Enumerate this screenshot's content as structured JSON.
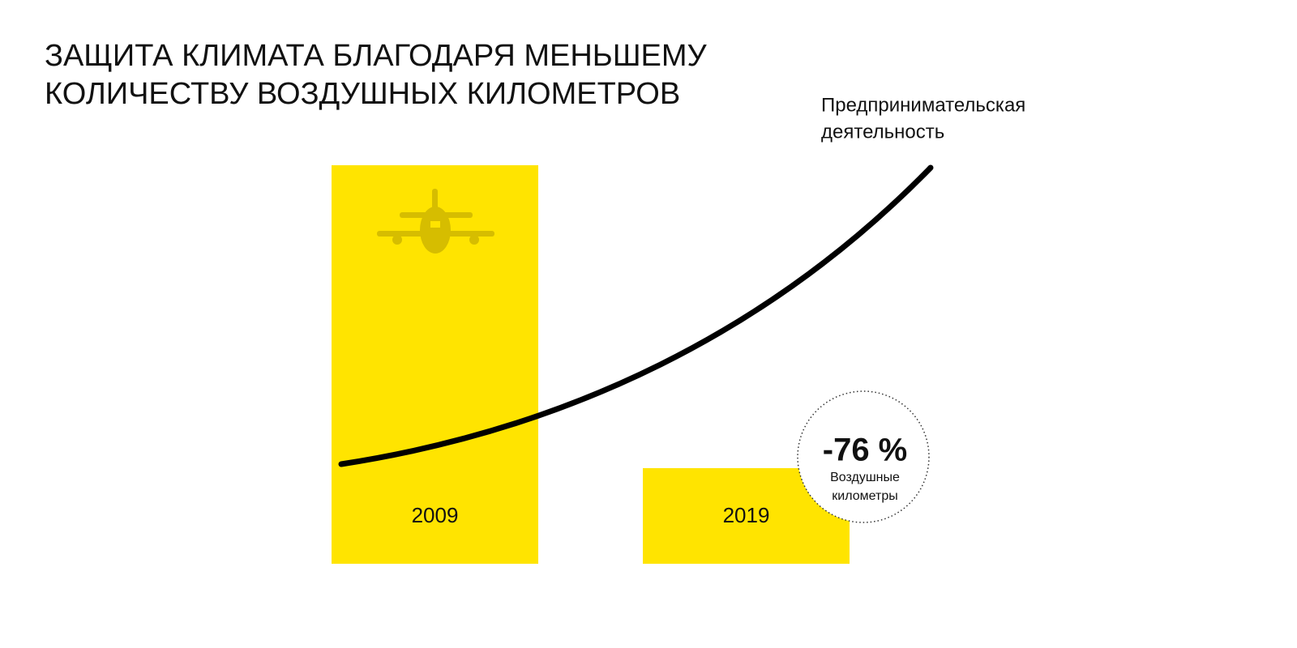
{
  "chart_data": {
    "type": "bar",
    "title": [
      "ЗАЩИТА КЛИМАТА БЛАГОДАРЯ МЕНЬШЕМУ",
      "КОЛИЧЕСТВУ ВОЗДУШНЫХ КИЛОМЕТРОВ"
    ],
    "categories": [
      "2009",
      "2019"
    ],
    "values": [
      100,
      24
    ],
    "color": "#ffe400",
    "ylim": [
      0,
      100
    ],
    "line_label": [
      "Предпринимательская",
      "деятельность"
    ],
    "annotation": {
      "label": "-76 %",
      "text": [
        "Воздушные",
        "километры"
      ]
    }
  }
}
